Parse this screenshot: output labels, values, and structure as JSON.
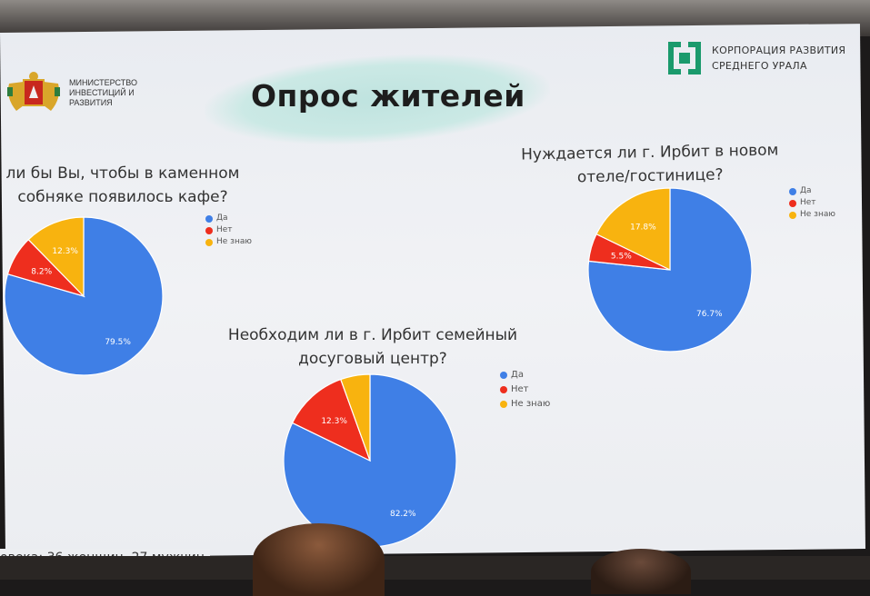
{
  "slide": {
    "title": "Опрос жителей",
    "ministry_logo_text": [
      "Министерство",
      "инвестиций и",
      "развития"
    ],
    "corporation_logo_text": [
      "КОРПОРАЦИЯ РАЗВИТИЯ",
      "СРЕДНЕГО УРАЛА"
    ],
    "footer": "овека: 36 женщин, 27 мужчин"
  },
  "colors": {
    "yes": "#3f7fe6",
    "no": "#ee2e1e",
    "dont_know": "#f8b30f"
  },
  "chart_data": [
    {
      "type": "pie",
      "title": [
        "ли бы Вы, чтобы в каменном",
        "собняке появилось кафе?"
      ],
      "legend": [
        "Да",
        "Нет",
        "Не знаю"
      ],
      "legend_position": "right",
      "values": [
        79.5,
        8.2,
        12.3
      ],
      "labels": [
        "79.5%",
        "8.2%",
        "12.3%"
      ]
    },
    {
      "type": "pie",
      "title": [
        "Нуждается ли г. Ирбит в новом",
        "отеле/гостинице?"
      ],
      "legend": [
        "Да",
        "Нет",
        "Не знаю"
      ],
      "legend_position": "right",
      "values": [
        76.7,
        5.5,
        17.8
      ],
      "labels": [
        "76.7%",
        "5.5%",
        "17.8%"
      ]
    },
    {
      "type": "pie",
      "title": [
        "Необходим ли в г. Ирбит семейный",
        "досуговый центр?"
      ],
      "legend": [
        "Да",
        "Нет",
        "Не знаю"
      ],
      "legend_position": "right",
      "values": [
        82.2,
        12.3,
        5.5
      ],
      "labels": [
        "82.2%",
        "12.3%",
        ""
      ]
    }
  ]
}
